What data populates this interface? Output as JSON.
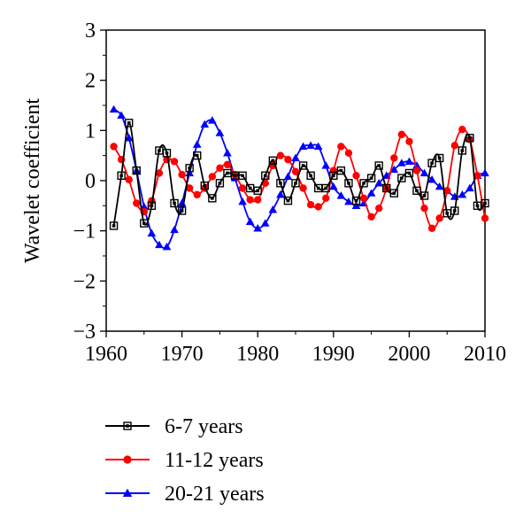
{
  "chart_data": {
    "type": "line",
    "ylabel": "Wavelet coefficient",
    "xlabel": "",
    "xlim": [
      1960,
      2010
    ],
    "ylim": [
      -3,
      3
    ],
    "xticks": [
      "1960",
      "1970",
      "1980",
      "1990",
      "2000",
      "2010"
    ],
    "yticks": [
      "3",
      "2",
      "1",
      "0",
      "−1",
      "−2",
      "−3"
    ],
    "legend_position": "bottom",
    "grid": false,
    "series": [
      {
        "name": "6-7 years",
        "color": "#000000",
        "marker": "square",
        "x": [
          1961,
          1962,
          1963,
          1964,
          1965,
          1966,
          1967,
          1968,
          1969,
          1970,
          1971,
          1972,
          1973,
          1974,
          1975,
          1976,
          1977,
          1978,
          1979,
          1980,
          1981,
          1982,
          1983,
          1984,
          1985,
          1986,
          1987,
          1988,
          1989,
          1990,
          1991,
          1992,
          1993,
          1994,
          1995,
          1996,
          1997,
          1998,
          1999,
          2000,
          2001,
          2002,
          2003,
          2004,
          2005,
          2006,
          2007,
          2008,
          2009,
          2010
        ],
        "y": [
          -0.9,
          0.1,
          1.15,
          0.2,
          -0.85,
          -0.5,
          0.6,
          0.55,
          -0.45,
          -0.6,
          0.25,
          0.5,
          -0.1,
          -0.35,
          -0.05,
          0.15,
          0.1,
          0.1,
          -0.15,
          -0.2,
          0.1,
          0.4,
          -0.05,
          -0.4,
          -0.05,
          0.3,
          0.1,
          -0.15,
          -0.15,
          0.1,
          0.2,
          -0.05,
          -0.4,
          -0.05,
          0.05,
          0.3,
          -0.15,
          -0.25,
          0.05,
          0.15,
          -0.2,
          -0.3,
          0.35,
          0.45,
          -0.65,
          -0.6,
          0.6,
          0.85,
          -0.5,
          -0.45
        ]
      },
      {
        "name": "11-12 years",
        "color": "#ff0000",
        "marker": "circle",
        "x": [
          1961,
          1962,
          1963,
          1964,
          1965,
          1966,
          1967,
          1968,
          1969,
          1970,
          1971,
          1972,
          1973,
          1974,
          1975,
          1976,
          1977,
          1978,
          1979,
          1980,
          1981,
          1982,
          1983,
          1984,
          1985,
          1986,
          1987,
          1988,
          1989,
          1990,
          1991,
          1992,
          1993,
          1994,
          1995,
          1996,
          1997,
          1998,
          1999,
          2000,
          2001,
          2002,
          2003,
          2004,
          2005,
          2006,
          2007,
          2008,
          2009,
          2010
        ],
        "y": [
          0.68,
          0.42,
          0.02,
          -0.45,
          -0.62,
          -0.4,
          0.15,
          0.42,
          0.38,
          0.12,
          -0.15,
          -0.28,
          -0.15,
          0.08,
          0.25,
          0.32,
          0.12,
          -0.15,
          -0.38,
          -0.38,
          -0.05,
          0.3,
          0.5,
          0.42,
          0.18,
          -0.15,
          -0.48,
          -0.52,
          -0.35,
          0.2,
          0.68,
          0.55,
          0.1,
          -0.35,
          -0.72,
          -0.55,
          -0.15,
          0.45,
          0.92,
          0.78,
          0.2,
          -0.55,
          -0.95,
          -0.75,
          -0.2,
          0.7,
          1.02,
          0.82,
          0.1,
          -0.75
        ]
      },
      {
        "name": "20-21 years",
        "color": "#0000ff",
        "marker": "triangle",
        "x": [
          1961,
          1962,
          1963,
          1964,
          1965,
          1966,
          1967,
          1968,
          1969,
          1970,
          1971,
          1972,
          1973,
          1974,
          1975,
          1976,
          1977,
          1978,
          1979,
          1980,
          1981,
          1982,
          1983,
          1984,
          1985,
          1986,
          1987,
          1988,
          1989,
          1990,
          1991,
          1992,
          1993,
          1994,
          1995,
          1996,
          1997,
          1998,
          1999,
          2000,
          2001,
          2002,
          2003,
          2004,
          2005,
          2006,
          2007,
          2008,
          2009,
          2010
        ],
        "y": [
          1.42,
          1.3,
          0.85,
          0.2,
          -0.52,
          -1.05,
          -1.28,
          -1.32,
          -0.98,
          -0.45,
          0.15,
          0.72,
          1.12,
          1.2,
          0.95,
          0.55,
          0.05,
          -0.42,
          -0.82,
          -0.95,
          -0.85,
          -0.58,
          -0.28,
          0.08,
          0.45,
          0.68,
          0.7,
          0.68,
          0.3,
          -0.12,
          -0.3,
          -0.42,
          -0.5,
          -0.45,
          -0.25,
          -0.05,
          0.1,
          0.22,
          0.35,
          0.38,
          0.3,
          0.15,
          0.02,
          -0.12,
          -0.2,
          -0.32,
          -0.28,
          -0.15,
          0.1,
          0.15
        ]
      }
    ]
  }
}
